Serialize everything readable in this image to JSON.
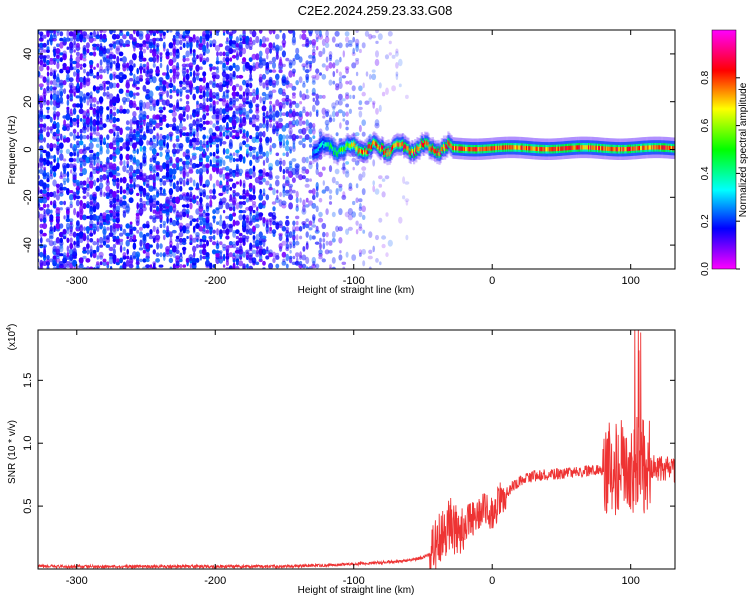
{
  "title": "C2E2.2024.259.23.33.G08",
  "chart_data": [
    {
      "type": "heatmap",
      "xlabel": "Height of straight line (km)",
      "ylabel": "Frequency (Hz)",
      "xlim": [
        -328,
        132
      ],
      "ylim": [
        -50,
        50
      ],
      "xticks": [
        -300,
        -200,
        -100,
        0,
        100
      ],
      "yticks": [
        -40,
        -20,
        0,
        20,
        40
      ],
      "colorbar": {
        "label": "Normalized spectral amplitude",
        "range": [
          0,
          1
        ],
        "ticks": [
          0.0,
          0.2,
          0.4,
          0.6,
          0.8
        ],
        "colormap": "rainbow-hue",
        "colors": [
          "#ff00ff",
          "#0000ff",
          "#00ffff",
          "#00ff00",
          "#ffff00",
          "#ff0000",
          "#ff00ff"
        ]
      },
      "features": [
        {
          "name": "broadband noise",
          "x_range": [
            -328,
            -60
          ],
          "freq_range": [
            -50,
            50
          ],
          "amplitude": 0.1
        },
        {
          "name": "carrier line",
          "x_range": [
            -130,
            132
          ],
          "freq": 0.5,
          "peak_amplitude": 0.9
        }
      ]
    },
    {
      "type": "line",
      "xlabel": "Height of straight line (km)",
      "ylabel": "SNR (10 * v/v)",
      "yscale_label": "(x10",
      "yscale_exp": "4",
      "xlim": [
        -328,
        132
      ],
      "ylim": [
        0,
        1.9
      ],
      "xticks": [
        -300,
        -200,
        -100,
        0,
        100
      ],
      "yticks": [
        0.5,
        1.0,
        1.5
      ],
      "ytick_labels": [
        "0.5",
        "1.0",
        "1.5"
      ],
      "color": "#ee3333",
      "series": [
        {
          "x": [
            -328,
            -300,
            -250,
            -200,
            -150,
            -120,
            -100,
            -80,
            -70,
            -60,
            -50,
            -45,
            -40,
            -35,
            -30,
            -25,
            -20,
            -15,
            -10,
            -5,
            0,
            5,
            10,
            15,
            20,
            25,
            30,
            40,
            50,
            60,
            70,
            80,
            85,
            90,
            95,
            100,
            105,
            110,
            115,
            120,
            125,
            132
          ],
          "values": [
            0.02,
            0.02,
            0.02,
            0.02,
            0.02,
            0.03,
            0.04,
            0.05,
            0.06,
            0.07,
            0.09,
            0.12,
            0.2,
            0.3,
            0.35,
            0.32,
            0.36,
            0.4,
            0.42,
            0.48,
            0.42,
            0.55,
            0.6,
            0.66,
            0.7,
            0.72,
            0.74,
            0.75,
            0.76,
            0.77,
            0.78,
            0.8,
            0.82,
            0.8,
            0.85,
            0.8,
            0.84,
            0.8,
            0.82,
            0.8,
            0.8,
            0.78
          ]
        }
      ]
    }
  ]
}
